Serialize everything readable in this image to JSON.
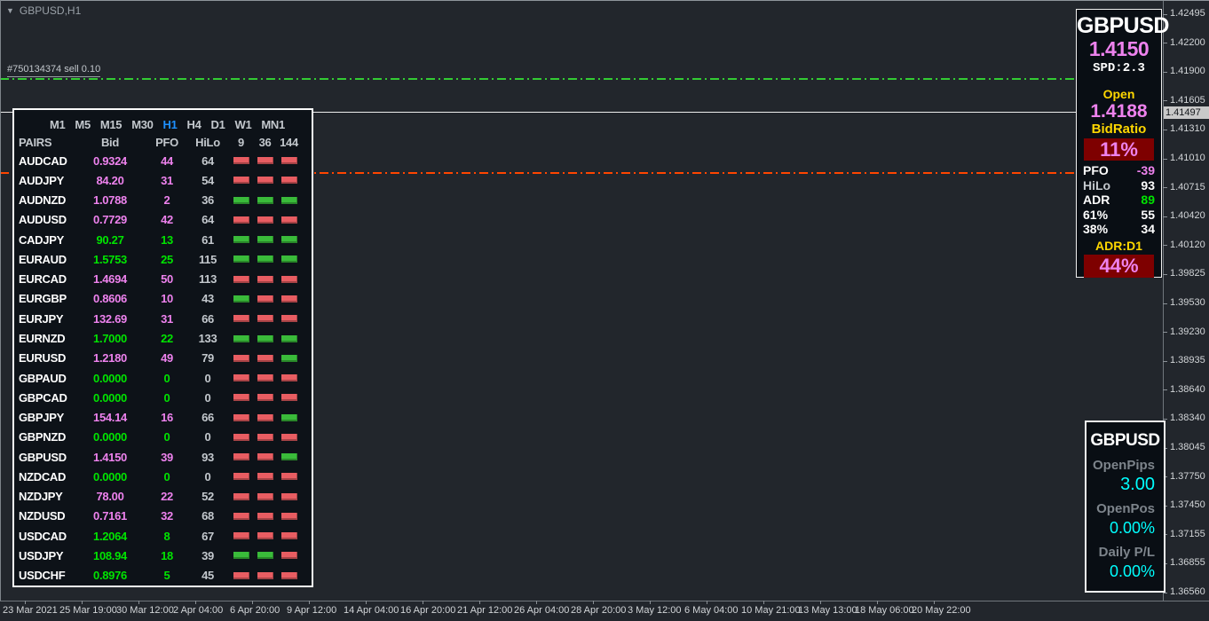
{
  "window": {
    "title": "GBPUSD,H1"
  },
  "chart": {
    "sell_order_label": "#750134374 sell 0.10",
    "current_price_tag": "1.41497",
    "price_axis_labels": [
      "1.42495",
      "1.42200",
      "1.41900",
      "1.41605",
      "1.41310",
      "1.41010",
      "1.40715",
      "1.40420",
      "1.40120",
      "1.39825",
      "1.39530",
      "1.39230",
      "1.38935",
      "1.38640",
      "1.38340",
      "1.38045",
      "1.37750",
      "1.37450",
      "1.37155",
      "1.36855",
      "1.36560"
    ],
    "time_axis_labels": [
      "23 Mar 2021",
      "25 Mar 19:00",
      "30 Mar 12:00",
      "2 Apr 04:00",
      "6 Apr 20:00",
      "9 Apr 12:00",
      "14 Apr 04:00",
      "16 Apr 20:00",
      "21 Apr 12:00",
      "26 Apr 04:00",
      "28 Apr 20:00",
      "3 May 12:00",
      "6 May 04:00",
      "10 May 21:00",
      "13 May 13:00",
      "18 May 06:00",
      "20 May 22:00"
    ]
  },
  "matrix_panel": {
    "timeframes": [
      {
        "label": "M1",
        "active": false
      },
      {
        "label": "M5",
        "active": false
      },
      {
        "label": "M15",
        "active": false
      },
      {
        "label": "M30",
        "active": false
      },
      {
        "label": "H1",
        "active": true
      },
      {
        "label": "H4",
        "active": false
      },
      {
        "label": "D1",
        "active": false
      },
      {
        "label": "W1",
        "active": false
      },
      {
        "label": "MN1",
        "active": false
      }
    ],
    "columns": [
      "PAIRS",
      "Bid",
      "PFO",
      "HiLo",
      "9",
      "36",
      "144"
    ],
    "rows": [
      {
        "pair": "AUDCAD",
        "pair_color": "white",
        "bid": "0.9324",
        "pfo": "44",
        "value_color": "violet",
        "hilo": "64",
        "boxes": [
          "red",
          "red",
          "red"
        ]
      },
      {
        "pair": "AUDJPY",
        "pair_color": "white",
        "bid": "84.20",
        "pfo": "31",
        "value_color": "violet",
        "hilo": "54",
        "boxes": [
          "red",
          "red",
          "red"
        ]
      },
      {
        "pair": "AUDNZD",
        "pair_color": "white",
        "bid": "1.0788",
        "pfo": "2",
        "value_color": "violet",
        "hilo": "36",
        "boxes": [
          "green",
          "green",
          "green"
        ]
      },
      {
        "pair": "AUDUSD",
        "pair_color": "white",
        "bid": "0.7729",
        "pfo": "42",
        "value_color": "violet",
        "hilo": "64",
        "boxes": [
          "red",
          "red",
          "red"
        ]
      },
      {
        "pair": "CADJPY",
        "pair_color": "white",
        "bid": "90.27",
        "pfo": "13",
        "value_color": "lime",
        "hilo": "61",
        "boxes": [
          "green",
          "green",
          "green"
        ]
      },
      {
        "pair": "EURAUD",
        "pair_color": "white",
        "bid": "1.5753",
        "pfo": "25",
        "value_color": "lime",
        "hilo": "115",
        "boxes": [
          "green",
          "green",
          "green"
        ]
      },
      {
        "pair": "EURCAD",
        "pair_color": "white",
        "bid": "1.4694",
        "pfo": "50",
        "value_color": "violet",
        "hilo": "113",
        "boxes": [
          "red",
          "red",
          "red"
        ]
      },
      {
        "pair": "EURGBP",
        "pair_color": "white",
        "bid": "0.8606",
        "pfo": "10",
        "value_color": "violet",
        "hilo": "43",
        "boxes": [
          "green",
          "red",
          "red"
        ]
      },
      {
        "pair": "EURJPY",
        "pair_color": "white",
        "bid": "132.69",
        "pfo": "31",
        "value_color": "violet",
        "hilo": "66",
        "boxes": [
          "red",
          "red",
          "red"
        ]
      },
      {
        "pair": "EURNZD",
        "pair_color": "white",
        "bid": "1.7000",
        "pfo": "22",
        "value_color": "lime",
        "hilo": "133",
        "boxes": [
          "green",
          "green",
          "green"
        ]
      },
      {
        "pair": "EURUSD",
        "pair_color": "white",
        "bid": "1.2180",
        "pfo": "49",
        "value_color": "violet",
        "hilo": "79",
        "boxes": [
          "red",
          "red",
          "green"
        ]
      },
      {
        "pair": "GBPAUD",
        "pair_color": "white",
        "bid": "0.0000",
        "pfo": "0",
        "value_color": "lime",
        "hilo": "0",
        "boxes": [
          "red",
          "red",
          "red"
        ]
      },
      {
        "pair": "GBPCAD",
        "pair_color": "white",
        "bid": "0.0000",
        "pfo": "0",
        "value_color": "lime",
        "hilo": "0",
        "boxes": [
          "red",
          "red",
          "red"
        ]
      },
      {
        "pair": "GBPJPY",
        "pair_color": "white",
        "bid": "154.14",
        "pfo": "16",
        "value_color": "violet",
        "hilo": "66",
        "boxes": [
          "red",
          "red",
          "green"
        ]
      },
      {
        "pair": "GBPNZD",
        "pair_color": "white",
        "bid": "0.0000",
        "pfo": "0",
        "value_color": "lime",
        "hilo": "0",
        "boxes": [
          "red",
          "red",
          "red"
        ]
      },
      {
        "pair": "GBPUSD",
        "pair_color": "blue",
        "bid": "1.4150",
        "pfo": "39",
        "value_color": "violet",
        "hilo": "93",
        "boxes": [
          "red",
          "red",
          "green"
        ]
      },
      {
        "pair": "NZDCAD",
        "pair_color": "white",
        "bid": "0.0000",
        "pfo": "0",
        "value_color": "lime",
        "hilo": "0",
        "boxes": [
          "red",
          "red",
          "red"
        ]
      },
      {
        "pair": "NZDJPY",
        "pair_color": "white",
        "bid": "78.00",
        "pfo": "22",
        "value_color": "violet",
        "hilo": "52",
        "boxes": [
          "red",
          "red",
          "red"
        ]
      },
      {
        "pair": "NZDUSD",
        "pair_color": "white",
        "bid": "0.7161",
        "pfo": "32",
        "value_color": "violet",
        "hilo": "68",
        "boxes": [
          "red",
          "red",
          "red"
        ]
      },
      {
        "pair": "USDCAD",
        "pair_color": "white",
        "bid": "1.2064",
        "pfo": "8",
        "value_color": "lime",
        "hilo": "67",
        "boxes": [
          "red",
          "red",
          "red"
        ]
      },
      {
        "pair": "USDJPY",
        "pair_color": "white",
        "bid": "108.94",
        "pfo": "18",
        "value_color": "lime",
        "hilo": "39",
        "boxes": [
          "green",
          "green",
          "red"
        ]
      },
      {
        "pair": "USDCHF",
        "pair_color": "white",
        "bid": "0.8976",
        "pfo": "5",
        "value_color": "lime",
        "hilo": "45",
        "boxes": [
          "red",
          "red",
          "red"
        ]
      }
    ]
  },
  "info_panel": {
    "symbol": "GBPUSD",
    "bid": "1.4150",
    "spread": "SPD:2.3",
    "open_label": "Open",
    "open_value": "1.4188",
    "bidratio_label": "BidRatio",
    "bidratio_value": "11%",
    "stats": [
      {
        "label": "PFO",
        "value": "-39",
        "label_color": "white",
        "value_color": "violet"
      },
      {
        "label": "HiLo",
        "value": "93",
        "label_color": "silver",
        "value_color": "white"
      },
      {
        "label": "ADR",
        "value": "89",
        "label_color": "white",
        "value_color": "lime"
      },
      {
        "label": "61%",
        "value": "55",
        "label_color": "white",
        "value_color": "white"
      },
      {
        "label": "38%",
        "value": "34",
        "label_color": "white",
        "value_color": "white"
      }
    ],
    "adr_label": "ADR:D1",
    "adr_value": "44%"
  },
  "position_panel": {
    "symbol": "GBPUSD",
    "items": [
      {
        "label": "OpenPips",
        "value": "3.00"
      },
      {
        "label": "OpenPos",
        "value": "0.00%"
      },
      {
        "label": "Daily P/L",
        "value": "0.00%"
      }
    ]
  },
  "colors": {
    "background": "#22262c",
    "panel_bg": "#0d1218",
    "panel_border": "#fafafa",
    "violet": "#ee82ee",
    "lime": "#00e400",
    "silver": "#c3c8cd",
    "blue": "#1e90ff",
    "gold": "#ffd700",
    "cyan": "#00ffff",
    "gray_label": "#7d848b",
    "red_box": "#e85d62",
    "green_box": "#3abb3a",
    "dark_red": "#7e0000",
    "sell_line": "#33cc33",
    "stop_line": "#ff4500",
    "bid_line": "#ededed",
    "axis_text": "#d2d5d8",
    "price_tag_bg": "#c9c9c9"
  }
}
